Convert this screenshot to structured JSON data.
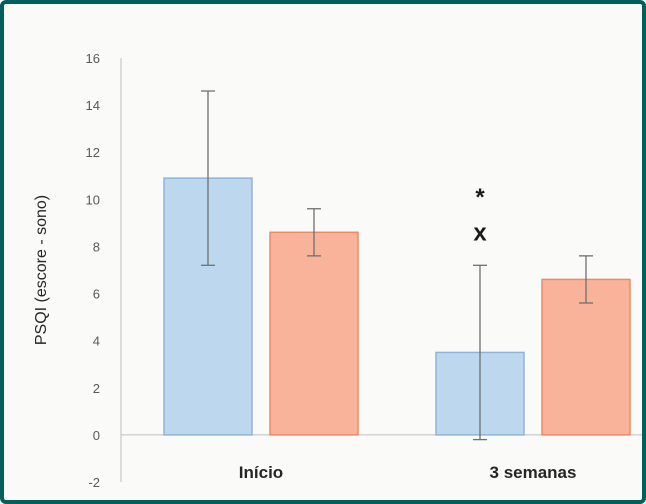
{
  "chart_data": {
    "type": "bar",
    "ylabel": "PSQI (escore - sono)",
    "xlabel": "",
    "categories": [
      "Início",
      "3 semanas"
    ],
    "ylim": [
      -2,
      16
    ],
    "yticks": [
      -2,
      0,
      2,
      4,
      6,
      8,
      10,
      12,
      14,
      16
    ],
    "grid": false,
    "series": [
      {
        "values": [
          10.9,
          3.5
        ],
        "error": [
          3.7,
          3.7
        ],
        "color": "#bdd7ee",
        "stroke": "#8eb4d8"
      },
      {
        "values": [
          8.6,
          6.6
        ],
        "error": [
          1.0,
          1.0
        ],
        "color": "#f8b39a",
        "stroke": "#ec8a66"
      }
    ],
    "annotations": [
      {
        "text": "*",
        "category": "3 semanas",
        "y": 10.1
      },
      {
        "text": "x",
        "category": "3 semanas",
        "y": 8.6
      }
    ]
  }
}
